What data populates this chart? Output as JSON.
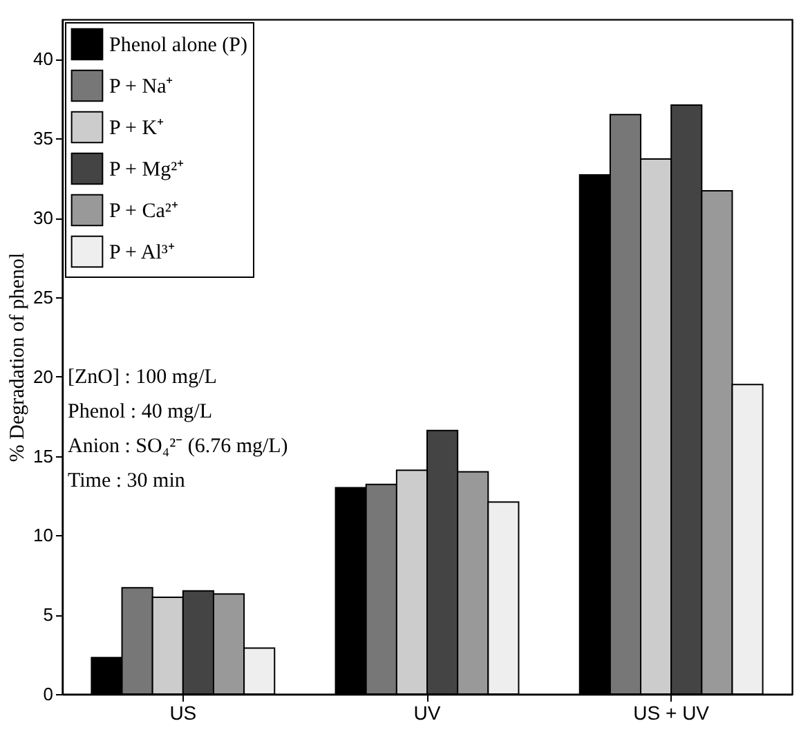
{
  "chart_data": {
    "type": "bar",
    "ylabel": "% Degradation of phenol",
    "categories": [
      "US",
      "UV",
      "US + UV"
    ],
    "series": [
      {
        "name": "Phenol alone (P)",
        "color": "#000000",
        "values": [
          2.3,
          13.0,
          32.7
        ]
      },
      {
        "name": "P + Na⁺",
        "color": "#777777",
        "values": [
          6.7,
          13.2,
          36.5
        ]
      },
      {
        "name": "P + K⁺",
        "color": "#cccccc",
        "values": [
          6.1,
          14.1,
          33.7
        ]
      },
      {
        "name": "P + Mg²⁺",
        "color": "#444444",
        "values": [
          6.5,
          16.6,
          37.1
        ]
      },
      {
        "name": "P + Ca²⁺",
        "color": "#999999",
        "values": [
          6.3,
          14.0,
          31.7
        ]
      },
      {
        "name": "P + Al³⁺",
        "color": "#eeeeee",
        "values": [
          2.9,
          12.1,
          19.5
        ]
      }
    ],
    "ylim": [
      0,
      42.5
    ],
    "yticks": [
      0,
      5,
      10,
      15,
      20,
      25,
      30,
      35,
      40
    ],
    "legend": "top left",
    "annotations": [
      "[ZnO]      : 100 mg/L",
      "Phenol     : 40 mg/L",
      "Anion      : SO₄²⁻ (6.76 mg/L)",
      "Time        : 30 min"
    ]
  }
}
